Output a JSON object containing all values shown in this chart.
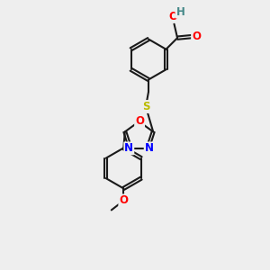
{
  "bg_color": "#eeeeee",
  "bond_color": "#1a1a1a",
  "bond_width": 1.5,
  "dbo": 0.055,
  "atom_colors": {
    "O": "#ff0000",
    "N": "#0000ff",
    "S": "#bbbb00",
    "H": "#448888",
    "C": "#1a1a1a"
  },
  "fs": 8.5,
  "xlim": [
    0,
    6
  ],
  "ylim": [
    0,
    10
  ]
}
